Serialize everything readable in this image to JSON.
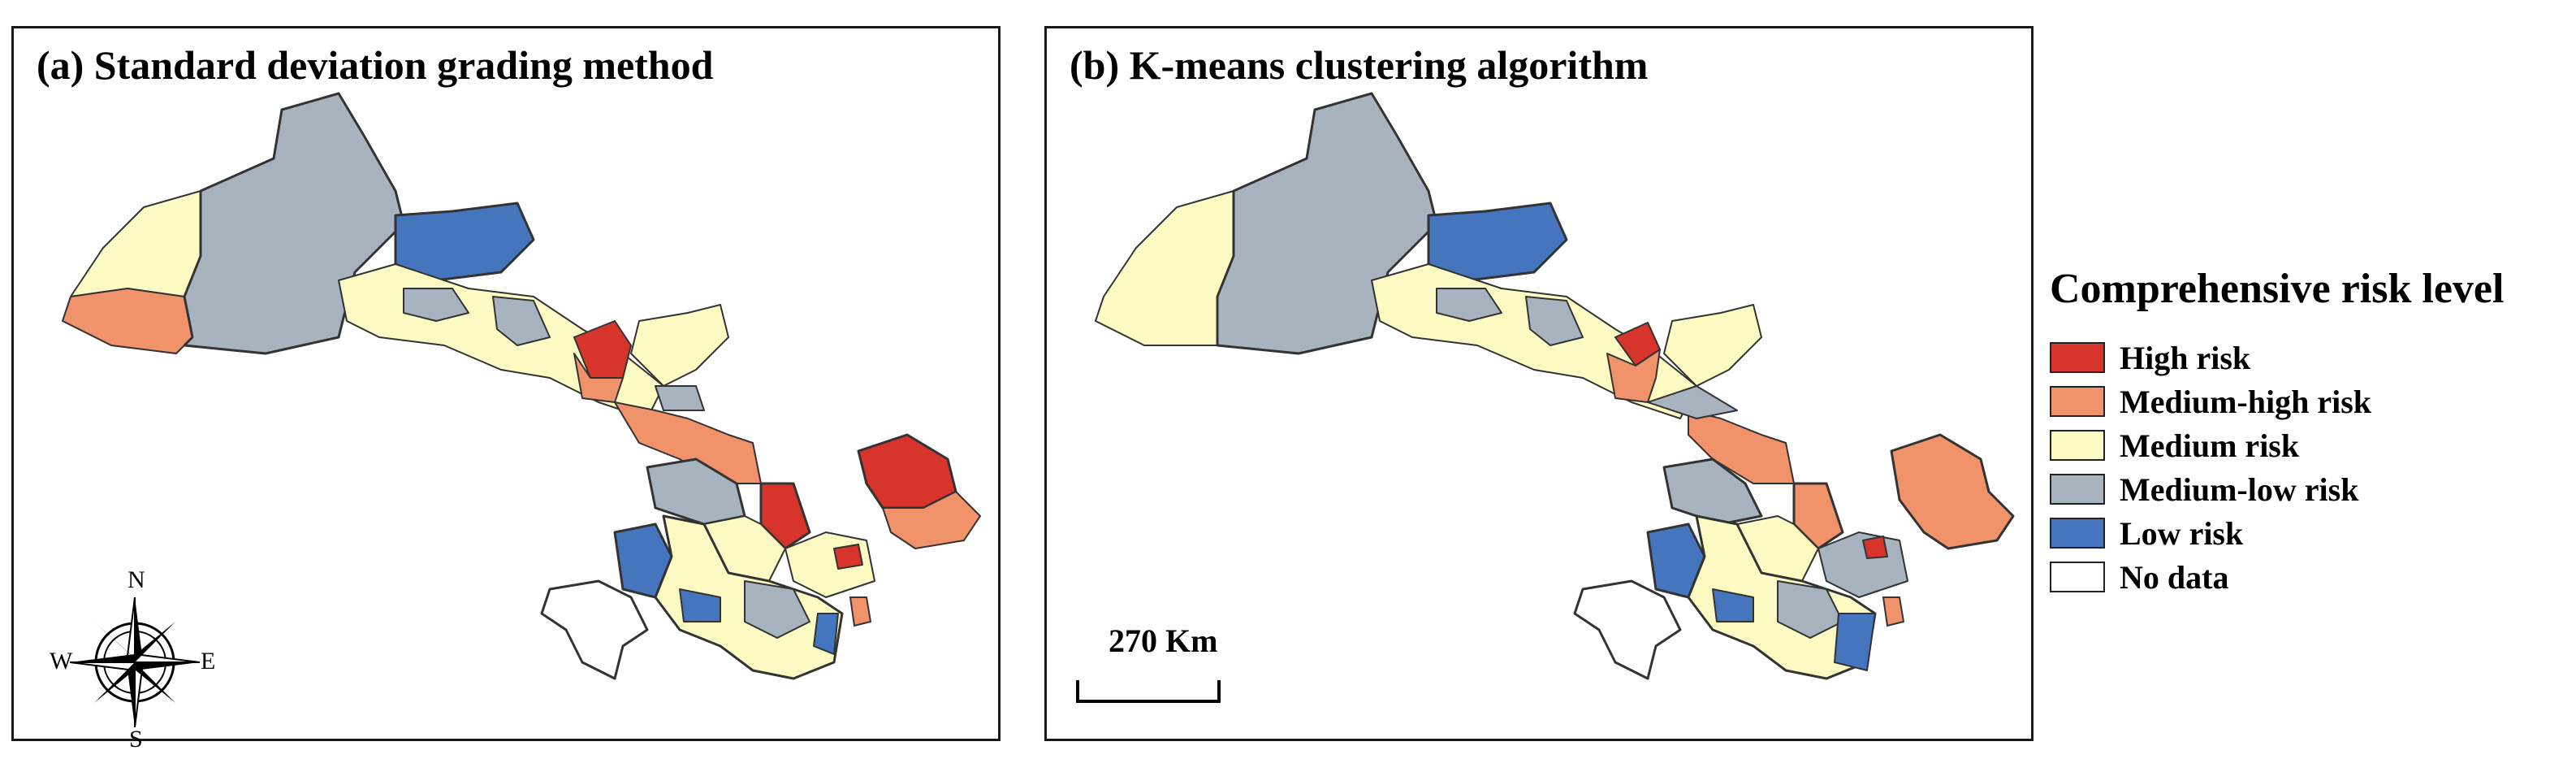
{
  "panels": [
    {
      "id": "a",
      "title": "(a) Standard deviation grading method"
    },
    {
      "id": "b",
      "title": "(b) K-means clustering algorithm"
    }
  ],
  "compass": {
    "north": "N",
    "south": "S",
    "east": "E",
    "west": "W"
  },
  "scale_bar": {
    "label": "270 Km"
  },
  "legend": {
    "title": "Comprehensive risk level",
    "items": [
      {
        "label": "High risk",
        "color": "#d7352b"
      },
      {
        "label": "Medium-high risk",
        "color": "#f0936a"
      },
      {
        "label": "Medium risk",
        "color": "#fdfbc3"
      },
      {
        "label": "Medium-low risk",
        "color": "#a7b3bf"
      },
      {
        "label": "Low risk",
        "color": "#4576bd"
      },
      {
        "label": "No data",
        "color": "#ffffff"
      }
    ]
  }
}
